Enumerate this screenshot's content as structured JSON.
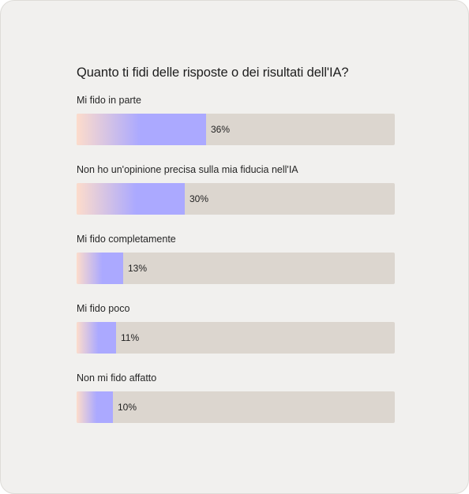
{
  "chart_data": {
    "type": "bar",
    "orientation": "horizontal",
    "title": "Quanto ti fidi delle risposte o dei risultati dell'IA?",
    "categories": [
      "Mi fido in parte",
      "Non ho un'opinione precisa sulla mia fiducia nell'IA",
      "Mi fido completamente",
      "Mi fido poco",
      "Non mi fido affatto"
    ],
    "values": [
      36,
      30,
      13,
      11,
      10
    ],
    "value_labels": [
      "36%",
      "30%",
      "13%",
      "11%",
      "10%"
    ],
    "xlim": [
      0,
      100
    ],
    "grid": false,
    "legend": "none",
    "colors": {
      "gradient_start": "#fddccb",
      "gradient_end": "#aba9ff",
      "track": "#dcd6cf",
      "card_background": "#f1f0ee"
    }
  }
}
